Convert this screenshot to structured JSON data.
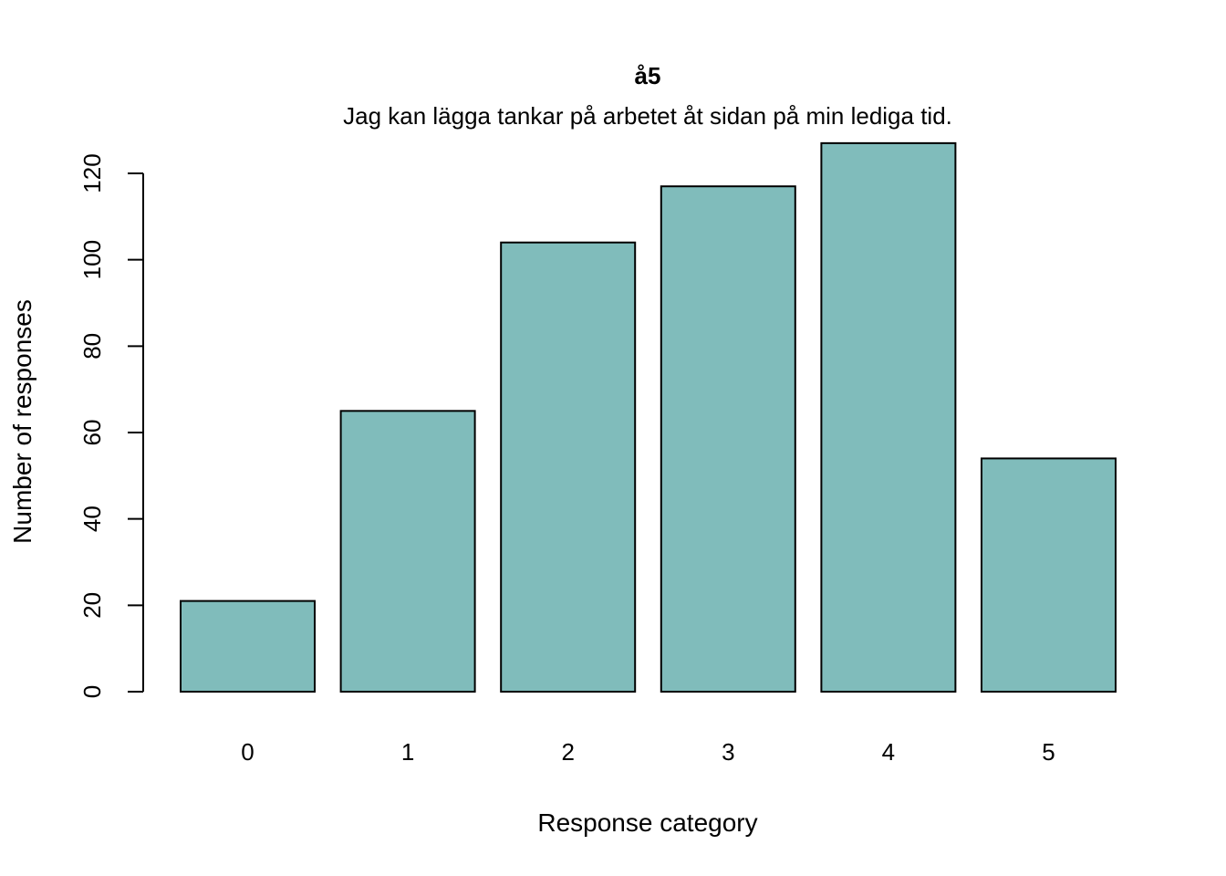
{
  "chart_data": {
    "type": "bar",
    "title": "å5",
    "subtitle": "Jag kan lägga tankar på arbetet åt sidan på min lediga tid.",
    "xlabel": "Response category",
    "ylabel": "Number of responses",
    "categories": [
      "0",
      "1",
      "2",
      "3",
      "4",
      "5"
    ],
    "values": [
      21,
      65,
      104,
      117,
      127,
      54
    ],
    "ylim": [
      0,
      120
    ],
    "yticks": [
      0,
      20,
      40,
      60,
      80,
      100,
      120
    ],
    "bar_color": "#80bcbb",
    "grid": false,
    "legend": "none"
  }
}
